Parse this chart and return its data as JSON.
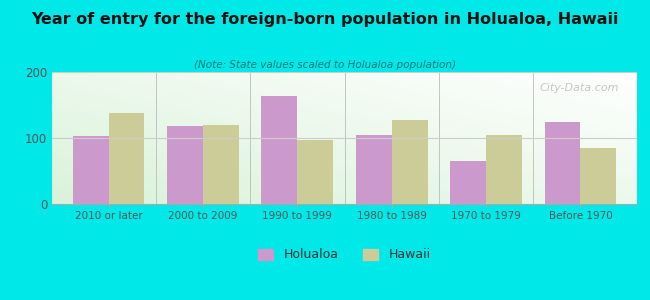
{
  "title": "Year of entry for the foreign-born population in Holualoa, Hawaii",
  "subtitle": "(Note: State values scaled to Holualoa population)",
  "categories": [
    "2010 or later",
    "2000 to 2009",
    "1990 to 1999",
    "1980 to 1989",
    "1970 to 1979",
    "Before 1970"
  ],
  "holualoa_values": [
    103,
    118,
    163,
    105,
    65,
    125
  ],
  "hawaii_values": [
    138,
    120,
    97,
    128,
    105,
    85
  ],
  "holualoa_color": "#cc99cc",
  "hawaii_color": "#cccc99",
  "background_color": "#00e8e8",
  "ylim": [
    0,
    200
  ],
  "yticks": [
    0,
    100,
    200
  ],
  "bar_width": 0.38,
  "legend_labels": [
    "Holualoa",
    "Hawaii"
  ],
  "watermark": "City-Data.com"
}
